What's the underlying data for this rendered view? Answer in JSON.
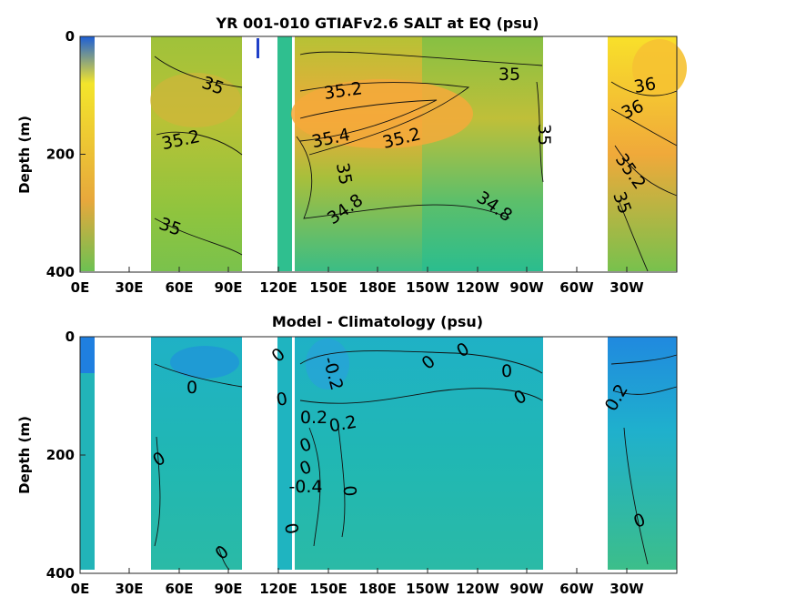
{
  "chart_data": [
    {
      "type": "heatmap",
      "title": "YR 001-010 GTIAFv2.6 SALT at EQ (psu)",
      "ylabel": "Depth (m)",
      "xlabel": "",
      "x_ticks": [
        "0E",
        "30E",
        "60E",
        "90E",
        "120E",
        "150E",
        "180E",
        "150W",
        "120W",
        "90W",
        "60W",
        "30W"
      ],
      "y_ticks": [
        0,
        200,
        400
      ],
      "ylim": [
        400,
        0
      ],
      "contour_labels": [
        "35",
        "35.2",
        "35.2",
        "35.4",
        "35.2",
        "35",
        "35",
        "35",
        "34.8",
        "34.8",
        "36",
        "36",
        "35.2",
        "35",
        "35"
      ],
      "grid": false
    },
    {
      "type": "heatmap",
      "title": "Model - Climatology (psu)",
      "ylabel": "Depth (m)",
      "xlabel": "",
      "x_ticks": [
        "0E",
        "30E",
        "60E",
        "90E",
        "120E",
        "150E",
        "180E",
        "150W",
        "120W",
        "90W",
        "60W",
        "30W"
      ],
      "y_ticks": [
        0,
        200,
        400
      ],
      "ylim": [
        400,
        0
      ],
      "contour_labels": [
        "0",
        "0",
        "0",
        "0",
        "0",
        "-0.2",
        "0.2",
        "0.2",
        "0",
        "0",
        "0",
        "0",
        "0",
        "-0.4",
        "0",
        "0",
        "0.2",
        "0",
        "0"
      ],
      "grid": false
    }
  ]
}
